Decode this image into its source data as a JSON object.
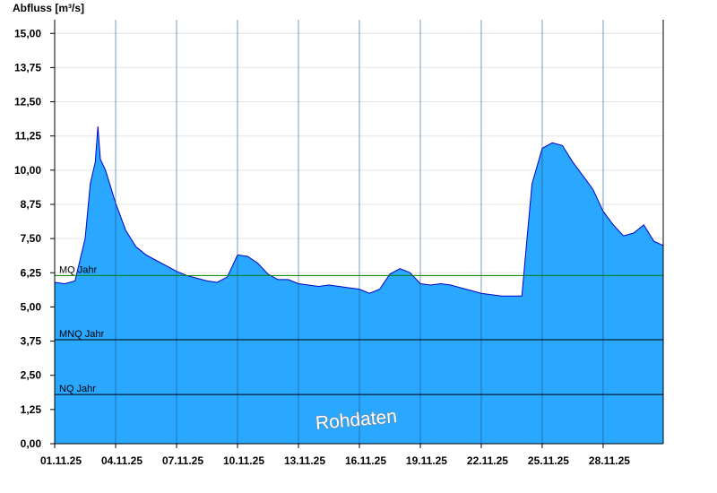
{
  "chart_data": {
    "type": "area",
    "ylabel": "Abfluss [m³/s]",
    "ylim": [
      0,
      15.5
    ],
    "xlim": [
      "2025-11-01",
      "2025-11-30T23:00"
    ],
    "yticks": [
      "0,00",
      "1,25",
      "2,50",
      "3,75",
      "5,00",
      "6,25",
      "7,50",
      "8,75",
      "10,00",
      "11,25",
      "12,50",
      "13,75",
      "15,00"
    ],
    "xticks": [
      "01.11.25",
      "04.11.25",
      "07.11.25",
      "10.11.25",
      "13.11.25",
      "16.11.25",
      "19.11.25",
      "22.11.25",
      "25.11.25",
      "28.11.25"
    ],
    "grid": true,
    "watermark": "Rohdaten",
    "reference_lines": [
      {
        "label": "MQ Jahr",
        "value": 6.15,
        "color": "#008000"
      },
      {
        "label": "MNQ Jahr",
        "value": 3.8,
        "color": "#000000"
      },
      {
        "label": "NQ Jahr",
        "value": 1.8,
        "color": "#000000"
      }
    ],
    "series": [
      {
        "fill": "#2aa7ff",
        "line": "#0000cc",
        "x": [
          "2025-11-01T00:00",
          "2025-11-01T12:00",
          "2025-11-02T00:00",
          "2025-11-02T12:00",
          "2025-11-02T18:00",
          "2025-11-03T00:00",
          "2025-11-03T03:00",
          "2025-11-03T06:00",
          "2025-11-03T12:00",
          "2025-11-04T00:00",
          "2025-11-04T12:00",
          "2025-11-05T00:00",
          "2025-11-05T12:00",
          "2025-11-06T00:00",
          "2025-11-06T12:00",
          "2025-11-07T00:00",
          "2025-11-07T12:00",
          "2025-11-08T00:00",
          "2025-11-08T12:00",
          "2025-11-09T00:00",
          "2025-11-09T12:00",
          "2025-11-10T00:00",
          "2025-11-10T12:00",
          "2025-11-11T00:00",
          "2025-11-11T12:00",
          "2025-11-12T00:00",
          "2025-11-12T12:00",
          "2025-11-13T00:00",
          "2025-11-13T12:00",
          "2025-11-14T00:00",
          "2025-11-14T12:00",
          "2025-11-15T00:00",
          "2025-11-15T12:00",
          "2025-11-16T00:00",
          "2025-11-16T12:00",
          "2025-11-17T00:00",
          "2025-11-17T12:00",
          "2025-11-18T00:00",
          "2025-11-18T12:00",
          "2025-11-19T00:00",
          "2025-11-19T12:00",
          "2025-11-20T00:00",
          "2025-11-20T12:00",
          "2025-11-21T00:00",
          "2025-11-21T12:00",
          "2025-11-22T00:00",
          "2025-11-22T12:00",
          "2025-11-23T00:00",
          "2025-11-23T12:00",
          "2025-11-24T00:00",
          "2025-11-24T06:00",
          "2025-11-24T12:00",
          "2025-11-25T00:00",
          "2025-11-25T12:00",
          "2025-11-26T00:00",
          "2025-11-26T12:00",
          "2025-11-27T00:00",
          "2025-11-27T12:00",
          "2025-11-28T00:00",
          "2025-11-28T12:00",
          "2025-11-29T00:00",
          "2025-11-29T12:00",
          "2025-11-30T00:00",
          "2025-11-30T12:00",
          "2025-11-30T23:00"
        ],
        "values": [
          5.9,
          5.85,
          5.95,
          7.5,
          9.5,
          10.3,
          11.6,
          10.4,
          10.0,
          8.8,
          7.8,
          7.2,
          6.9,
          6.7,
          6.5,
          6.3,
          6.15,
          6.05,
          5.95,
          5.9,
          6.1,
          6.9,
          6.85,
          6.6,
          6.2,
          6.0,
          6.0,
          5.85,
          5.8,
          5.75,
          5.8,
          5.75,
          5.7,
          5.65,
          5.5,
          5.65,
          6.2,
          6.4,
          6.25,
          5.85,
          5.8,
          5.85,
          5.8,
          5.7,
          5.6,
          5.5,
          5.45,
          5.4,
          5.4,
          5.4,
          7.5,
          9.5,
          10.8,
          11.0,
          10.9,
          10.3,
          9.8,
          9.3,
          8.5,
          8.0,
          7.6,
          7.7,
          8.0,
          7.4,
          7.25
        ]
      }
    ]
  }
}
